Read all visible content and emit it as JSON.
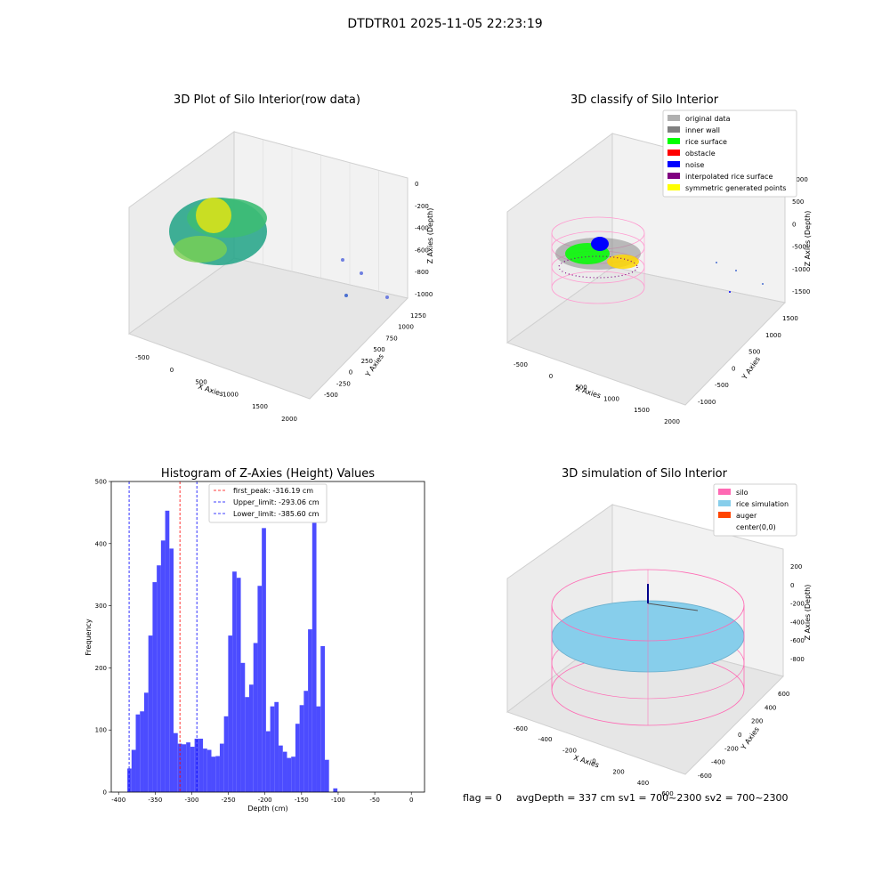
{
  "figure_title": "DTDTR01 2025-11-05 22:23:19",
  "footer": {
    "flag": "flag = 0",
    "stats": "avgDepth = 337 cm  sv1 = 700~2300  sv2 = 700~2300"
  },
  "chart_data": [
    {
      "type": "scatter",
      "subtype": "3d",
      "title": "3D Plot of Silo Interior(row data)",
      "xlabel": "X Axies",
      "ylabel": "Y Axies",
      "zlabel": "Z Axies (Depth)",
      "x_ticks": [
        "-500",
        "0",
        "500",
        "1000",
        "1500",
        "2000"
      ],
      "y_ticks": [
        "-500",
        "-250",
        "0",
        "250",
        "500",
        "750",
        "1000",
        "1250"
      ],
      "z_ticks": [
        "-1000",
        "-800",
        "-600",
        "-400",
        "-200",
        "0"
      ],
      "colormap": "viridis",
      "outlier_points": [
        {
          "x": 1800,
          "y": 1200,
          "z": -700
        },
        {
          "x": 1950,
          "y": 1100,
          "z": -800
        },
        {
          "x": 1600,
          "y": 400,
          "z": -1000
        },
        {
          "x": 1950,
          "y": 400,
          "z": -1000
        }
      ]
    },
    {
      "type": "scatter",
      "subtype": "3d",
      "title": "3D classify of Silo Interior",
      "xlabel": "X Axies",
      "ylabel": "Y Axies",
      "zlabel": "Z Axies (Depth)",
      "x_ticks": [
        "-500",
        "0",
        "500",
        "1000",
        "1500",
        "2000"
      ],
      "y_ticks": [
        "-1000",
        "-500",
        "0",
        "500",
        "1000",
        "1500"
      ],
      "z_ticks": [
        "-1500",
        "-1000",
        "-500",
        "0",
        "500",
        "1000"
      ],
      "legend_position": "top-right",
      "legend": [
        {
          "label": "original data",
          "color": "#b0b0b0"
        },
        {
          "label": "inner wall",
          "color": "#808080"
        },
        {
          "label": "rice surface",
          "color": "#00ff00"
        },
        {
          "label": "obstacle",
          "color": "#ff0000"
        },
        {
          "label": "noise",
          "color": "#0000ff"
        },
        {
          "label": "interpolated rice surface",
          "color": "#800080"
        },
        {
          "label": "symmetric generated points",
          "color": "#ffff00"
        }
      ]
    },
    {
      "type": "bar",
      "subtype": "histogram",
      "title": "Histogram of Z-Axies (Height) Values",
      "xlabel": "Depth (cm)",
      "ylabel": "Frequency",
      "xlim": [
        -410,
        18
      ],
      "ylim": [
        0,
        500
      ],
      "x_ticks": [
        -400,
        -350,
        -300,
        -250,
        -200,
        -150,
        -100,
        -50,
        0
      ],
      "y_ticks": [
        0,
        100,
        200,
        300,
        400,
        500
      ],
      "bar_color": "#4c4cff",
      "bin_start": -388,
      "bin_width": 5.74,
      "values": [
        38,
        68,
        125,
        130,
        160,
        252,
        338,
        365,
        405,
        453,
        392,
        95,
        78,
        77,
        80,
        73,
        86,
        86,
        70,
        68,
        57,
        58,
        78,
        122,
        252,
        355,
        345,
        208,
        153,
        173,
        240,
        332,
        425,
        98,
        138,
        145,
        75,
        65,
        55,
        57,
        110,
        140,
        163,
        262,
        477,
        138,
        235,
        52,
        0,
        6
      ],
      "vlines": [
        {
          "label": "first_peak: -316.19 cm",
          "x": -316.19,
          "color": "#ff0000"
        },
        {
          "label": "Upper_limit: -293.06 cm",
          "x": -293.06,
          "color": "#0000ff"
        },
        {
          "label": "Lower_limit: -385.60 cm",
          "x": -385.6,
          "color": "#0000ff"
        }
      ],
      "legend_position": "top-center"
    },
    {
      "type": "scatter",
      "subtype": "3d-surface",
      "title": "3D simulation of Silo Interior",
      "xlabel": "X Axies",
      "ylabel": "Y Axies",
      "zlabel": "Z Axies (Depth)",
      "x_ticks": [
        "-600",
        "-400",
        "-200",
        "0",
        "200",
        "400",
        "600"
      ],
      "y_ticks": [
        "-600",
        "-400",
        "-200",
        "0",
        "200",
        "400",
        "600"
      ],
      "z_ticks": [
        "-800",
        "-600",
        "-400",
        "-200",
        "0",
        "200"
      ],
      "legend_position": "top-right",
      "legend": [
        {
          "label": "silo",
          "color": "#ff69b4"
        },
        {
          "label": "rice simulation",
          "color": "#87ceeb"
        },
        {
          "label": "auger",
          "color": "#ff4500"
        },
        {
          "label": "center(0,0)",
          "color": "#ffffff"
        }
      ]
    }
  ]
}
